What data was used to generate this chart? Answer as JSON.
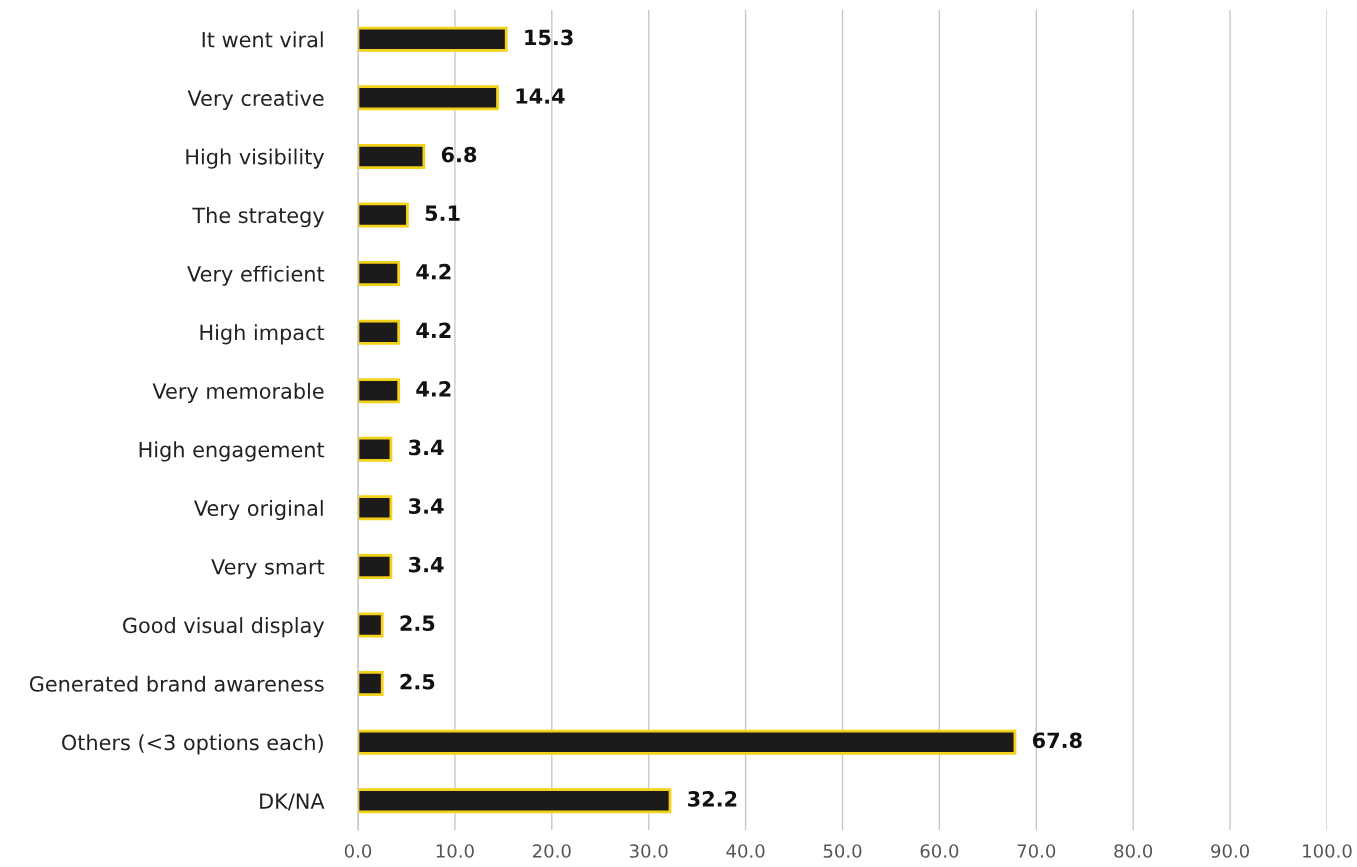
{
  "chart_data": {
    "type": "bar",
    "orientation": "horizontal",
    "categories": [
      "It went viral",
      "Very creative",
      "High visibility",
      "The strategy",
      "Very efficient",
      "High impact",
      "Very memorable",
      "High engagement",
      "Very original",
      "Very smart",
      "Good visual display",
      "Generated brand awareness",
      "Others (<3 options each)",
      "DK/NA"
    ],
    "values": [
      15.3,
      14.4,
      6.8,
      5.1,
      4.2,
      4.2,
      4.2,
      3.4,
      3.4,
      3.4,
      2.5,
      2.5,
      67.8,
      32.2
    ],
    "color": "#1c1a1b",
    "xlim": [
      0,
      100
    ],
    "xticks": [
      {
        "value": 0,
        "label": "0.0"
      },
      {
        "value": 10,
        "label": "10.0"
      },
      {
        "value": 20,
        "label": "20.0"
      },
      {
        "value": 30,
        "label": "30.0"
      },
      {
        "value": 40,
        "label": "40.0"
      },
      {
        "value": 50,
        "label": "50.0"
      },
      {
        "value": 60,
        "label": "60.0"
      },
      {
        "value": 70,
        "label": "70.0"
      },
      {
        "value": 80,
        "label": "80.0"
      },
      {
        "value": 90,
        "label": "90.0"
      },
      {
        "value": 100,
        "label": "100.0"
      }
    ],
    "grid": "x",
    "data_labels": true
  }
}
